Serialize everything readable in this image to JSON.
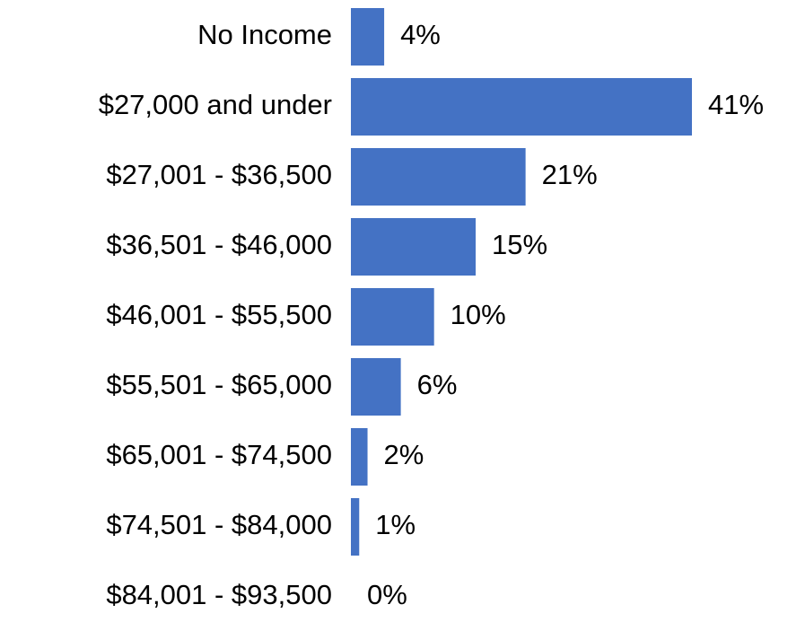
{
  "chart_data": {
    "type": "bar",
    "orientation": "horizontal",
    "categories": [
      "No Income",
      "$27,000 and under",
      "$27,001 - $36,500",
      "$36,501 - $46,000",
      "$46,001 - $55,500",
      "$55,501 - $65,000",
      "$65,001 - $74,500",
      "$74,501 - $84,000",
      "$84,001 - $93,500"
    ],
    "values": [
      4,
      41,
      21,
      15,
      10,
      6,
      2,
      1,
      0
    ],
    "value_labels": [
      "4%",
      "41%",
      "21%",
      "15%",
      "10%",
      "6%",
      "2%",
      "1%",
      "0%"
    ],
    "color": "#4472c4"
  }
}
